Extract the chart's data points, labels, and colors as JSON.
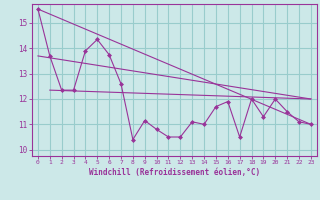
{
  "xlabel": "Windchill (Refroidissement éolien,°C)",
  "background_color": "#cce8e8",
  "grid_color": "#99cccc",
  "line_color": "#993399",
  "xlim": [
    -0.5,
    23.5
  ],
  "ylim": [
    9.75,
    15.75
  ],
  "xticks": [
    0,
    1,
    2,
    3,
    4,
    5,
    6,
    7,
    8,
    9,
    10,
    11,
    12,
    13,
    14,
    15,
    16,
    17,
    18,
    19,
    20,
    21,
    22,
    23
  ],
  "yticks": [
    10,
    11,
    12,
    13,
    14,
    15
  ],
  "line1_y": [
    15.55,
    13.7,
    12.35,
    12.35,
    13.9,
    14.35,
    13.75,
    12.6,
    10.4,
    11.15,
    10.8,
    10.5,
    10.5,
    11.1,
    11.0,
    11.7,
    11.9,
    10.5,
    12.0,
    11.3,
    12.0,
    11.5,
    11.1,
    11.0
  ],
  "straight_lines": [
    {
      "x": [
        0,
        23
      ],
      "y": [
        15.55,
        11.0
      ]
    },
    {
      "x": [
        0,
        23
      ],
      "y": [
        13.7,
        12.0
      ]
    },
    {
      "x": [
        1,
        23
      ],
      "y": [
        12.35,
        12.0
      ]
    }
  ]
}
